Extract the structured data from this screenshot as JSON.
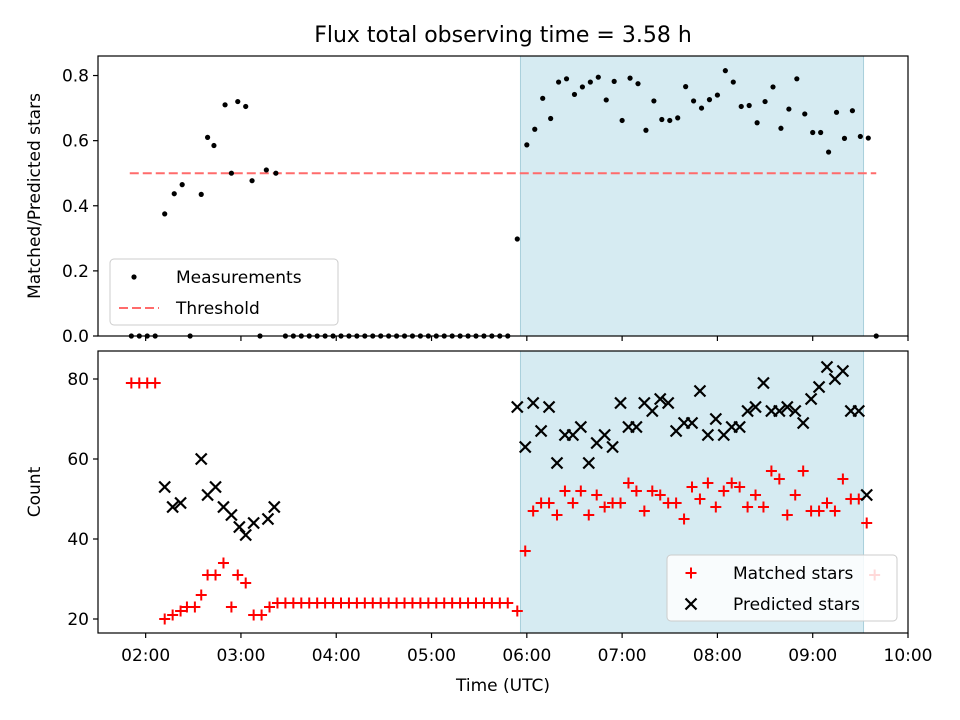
{
  "figure": {
    "title": "Flux total observing time = 3.58 h",
    "background": "#ffffff",
    "shade_color": "#add8e6"
  },
  "chart_data": [
    {
      "type": "scatter",
      "panel": "top",
      "title": "Flux total observing time = 3.58 h",
      "xlabel": "",
      "ylabel": "Matched/Predicted stars",
      "xlim": [
        "01:30",
        "10:00"
      ],
      "ylim": [
        0,
        0.86
      ],
      "yticks": [
        0.0,
        0.2,
        0.4,
        0.6,
        0.8
      ],
      "ytick_labels": [
        "0.0",
        "0.2",
        "0.4",
        "0.6",
        "0.8"
      ],
      "grid": false,
      "legend_position": "lower-left",
      "shaded_region": [
        "05:56",
        "09:32"
      ],
      "threshold": {
        "name": "Threshold",
        "value": 0.5,
        "xrange": [
          "01:50",
          "09:40"
        ],
        "color": "#ff6b6b",
        "style": "dashed"
      },
      "series": [
        {
          "name": "Measurements",
          "color": "#000000",
          "marker": "dot",
          "points": [
            [
              "01:51",
              0.0
            ],
            [
              "01:56",
              0.0
            ],
            [
              "02:01",
              0.0
            ],
            [
              "02:06",
              0.0
            ],
            [
              "02:12",
              0.375
            ],
            [
              "02:18",
              0.437
            ],
            [
              "02:23",
              0.465
            ],
            [
              "02:28",
              0.0
            ],
            [
              "02:35",
              0.435
            ],
            [
              "02:39",
              0.61
            ],
            [
              "02:43",
              0.585
            ],
            [
              "02:50",
              0.71
            ],
            [
              "02:54",
              0.5
            ],
            [
              "02:58",
              0.72
            ],
            [
              "03:03",
              0.705
            ],
            [
              "03:07",
              0.477
            ],
            [
              "03:12",
              0.0
            ],
            [
              "03:16",
              0.51
            ],
            [
              "03:22",
              0.5
            ],
            [
              "03:28",
              0.0
            ],
            [
              "03:33",
              0.0
            ],
            [
              "03:38",
              0.0
            ],
            [
              "03:43",
              0.0
            ],
            [
              "03:48",
              0.0
            ],
            [
              "03:53",
              0.0
            ],
            [
              "03:58",
              0.0
            ],
            [
              "04:03",
              0.0
            ],
            [
              "04:08",
              0.0
            ],
            [
              "04:13",
              0.0
            ],
            [
              "04:18",
              0.0
            ],
            [
              "04:23",
              0.0
            ],
            [
              "04:28",
              0.0
            ],
            [
              "04:33",
              0.0
            ],
            [
              "04:38",
              0.0
            ],
            [
              "04:43",
              0.0
            ],
            [
              "04:48",
              0.0
            ],
            [
              "04:53",
              0.0
            ],
            [
              "04:58",
              0.0
            ],
            [
              "05:03",
              0.0
            ],
            [
              "05:08",
              0.0
            ],
            [
              "05:13",
              0.0
            ],
            [
              "05:18",
              0.0
            ],
            [
              "05:23",
              0.0
            ],
            [
              "05:28",
              0.0
            ],
            [
              "05:33",
              0.0
            ],
            [
              "05:38",
              0.0
            ],
            [
              "05:43",
              0.0
            ],
            [
              "05:48",
              0.0
            ],
            [
              "05:54",
              0.298
            ],
            [
              "06:00",
              0.587
            ],
            [
              "06:05",
              0.635
            ],
            [
              "06:10",
              0.73
            ],
            [
              "06:15",
              0.668
            ],
            [
              "06:20",
              0.78
            ],
            [
              "06:25",
              0.79
            ],
            [
              "06:30",
              0.742
            ],
            [
              "06:35",
              0.765
            ],
            [
              "06:40",
              0.78
            ],
            [
              "06:45",
              0.795
            ],
            [
              "06:50",
              0.725
            ],
            [
              "06:55",
              0.782
            ],
            [
              "07:00",
              0.662
            ],
            [
              "07:05",
              0.792
            ],
            [
              "07:10",
              0.775
            ],
            [
              "07:15",
              0.632
            ],
            [
              "07:20",
              0.722
            ],
            [
              "07:25",
              0.665
            ],
            [
              "07:30",
              0.662
            ],
            [
              "07:35",
              0.67
            ],
            [
              "07:40",
              0.766
            ],
            [
              "07:45",
              0.722
            ],
            [
              "07:50",
              0.7
            ],
            [
              "07:55",
              0.726
            ],
            [
              "08:00",
              0.74
            ],
            [
              "08:05",
              0.815
            ],
            [
              "08:10",
              0.78
            ],
            [
              "08:15",
              0.705
            ],
            [
              "08:20",
              0.708
            ],
            [
              "08:25",
              0.655
            ],
            [
              "08:30",
              0.72
            ],
            [
              "08:35",
              0.765
            ],
            [
              "08:40",
              0.638
            ],
            [
              "08:45",
              0.697
            ],
            [
              "08:50",
              0.79
            ],
            [
              "08:55",
              0.682
            ],
            [
              "09:00",
              0.625
            ],
            [
              "09:05",
              0.625
            ],
            [
              "09:10",
              0.565
            ],
            [
              "09:15",
              0.687
            ],
            [
              "09:20",
              0.607
            ],
            [
              "09:25",
              0.692
            ],
            [
              "09:30",
              0.613
            ],
            [
              "09:35",
              0.608
            ],
            [
              "09:40",
              0.0
            ]
          ]
        }
      ]
    },
    {
      "type": "scatter",
      "panel": "bottom",
      "xlabel": "Time (UTC)",
      "ylabel": "Count",
      "xlim": [
        "01:30",
        "10:00"
      ],
      "xticks": [
        "02:00",
        "03:00",
        "04:00",
        "05:00",
        "06:00",
        "07:00",
        "08:00",
        "09:00",
        "10:00"
      ],
      "ylim": [
        16.5,
        87
      ],
      "yticks": [
        20,
        40,
        60,
        80
      ],
      "ytick_labels": [
        "20",
        "40",
        "60",
        "80"
      ],
      "grid": false,
      "legend_position": "lower-right",
      "shaded_region": [
        "05:56",
        "09:32"
      ],
      "series": [
        {
          "name": "Matched stars",
          "color": "#ff0000",
          "marker": "plus",
          "points": [
            [
              "01:51",
              79
            ],
            [
              "01:56",
              79
            ],
            [
              "02:01",
              79
            ],
            [
              "02:06",
              79
            ],
            [
              "02:12",
              20
            ],
            [
              "02:17",
              21
            ],
            [
              "02:22",
              22
            ],
            [
              "02:26",
              23
            ],
            [
              "02:31",
              23
            ],
            [
              "02:35",
              26
            ],
            [
              "02:39",
              31
            ],
            [
              "02:44",
              31
            ],
            [
              "02:49",
              34
            ],
            [
              "02:54",
              23
            ],
            [
              "02:58",
              31
            ],
            [
              "03:03",
              29
            ],
            [
              "03:08",
              21
            ],
            [
              "03:13",
              21
            ],
            [
              "03:18",
              23
            ],
            [
              "03:23",
              24
            ],
            [
              "03:28",
              24
            ],
            [
              "03:33",
              24
            ],
            [
              "03:38",
              24
            ],
            [
              "03:43",
              24
            ],
            [
              "03:48",
              24
            ],
            [
              "03:53",
              24
            ],
            [
              "03:58",
              24
            ],
            [
              "04:03",
              24
            ],
            [
              "04:08",
              24
            ],
            [
              "04:13",
              24
            ],
            [
              "04:18",
              24
            ],
            [
              "04:23",
              24
            ],
            [
              "04:28",
              24
            ],
            [
              "04:33",
              24
            ],
            [
              "04:38",
              24
            ],
            [
              "04:43",
              24
            ],
            [
              "04:48",
              24
            ],
            [
              "04:53",
              24
            ],
            [
              "04:58",
              24
            ],
            [
              "05:03",
              24
            ],
            [
              "05:08",
              24
            ],
            [
              "05:13",
              24
            ],
            [
              "05:18",
              24
            ],
            [
              "05:23",
              24
            ],
            [
              "05:28",
              24
            ],
            [
              "05:33",
              24
            ],
            [
              "05:38",
              24
            ],
            [
              "05:43",
              24
            ],
            [
              "05:48",
              24
            ],
            [
              "05:54",
              22
            ],
            [
              "05:59",
              37
            ],
            [
              "06:04",
              47
            ],
            [
              "06:09",
              49
            ],
            [
              "06:14",
              49
            ],
            [
              "06:19",
              46
            ],
            [
              "06:24",
              52
            ],
            [
              "06:29",
              49
            ],
            [
              "06:34",
              52
            ],
            [
              "06:39",
              46
            ],
            [
              "06:44",
              51
            ],
            [
              "06:49",
              48
            ],
            [
              "06:54",
              49
            ],
            [
              "06:59",
              49
            ],
            [
              "07:04",
              54
            ],
            [
              "07:09",
              52
            ],
            [
              "07:14",
              47
            ],
            [
              "07:19",
              52
            ],
            [
              "07:24",
              51
            ],
            [
              "07:29",
              49
            ],
            [
              "07:34",
              49
            ],
            [
              "07:39",
              45
            ],
            [
              "07:44",
              53
            ],
            [
              "07:49",
              50
            ],
            [
              "07:54",
              54
            ],
            [
              "07:59",
              48
            ],
            [
              "08:04",
              52
            ],
            [
              "08:09",
              54
            ],
            [
              "08:14",
              53
            ],
            [
              "08:19",
              48
            ],
            [
              "08:24",
              51
            ],
            [
              "08:29",
              48
            ],
            [
              "08:34",
              57
            ],
            [
              "08:39",
              55
            ],
            [
              "08:44",
              46
            ],
            [
              "08:49",
              51
            ],
            [
              "08:54",
              57
            ],
            [
              "08:59",
              47
            ],
            [
              "09:04",
              47
            ],
            [
              "09:09",
              49
            ],
            [
              "09:14",
              47
            ],
            [
              "09:19",
              55
            ],
            [
              "09:24",
              50
            ],
            [
              "09:29",
              50
            ],
            [
              "09:34",
              44
            ],
            [
              "09:39",
              31
            ]
          ]
        },
        {
          "name": "Predicted stars",
          "color": "#000000",
          "marker": "x",
          "points": [
            [
              "02:12",
              53
            ],
            [
              "02:17",
              48
            ],
            [
              "02:22",
              49
            ],
            [
              "02:35",
              60
            ],
            [
              "02:39",
              51
            ],
            [
              "02:44",
              53
            ],
            [
              "02:49",
              48
            ],
            [
              "02:54",
              46
            ],
            [
              "02:59",
              43
            ],
            [
              "03:03",
              41
            ],
            [
              "03:08",
              44
            ],
            [
              "03:17",
              45
            ],
            [
              "03:21",
              48
            ],
            [
              "05:54",
              73
            ],
            [
              "05:59",
              63
            ],
            [
              "06:04",
              74
            ],
            [
              "06:09",
              67
            ],
            [
              "06:14",
              73
            ],
            [
              "06:19",
              59
            ],
            [
              "06:24",
              66
            ],
            [
              "06:29",
              66
            ],
            [
              "06:34",
              68
            ],
            [
              "06:39",
              59
            ],
            [
              "06:44",
              64
            ],
            [
              "06:49",
              66
            ],
            [
              "06:54",
              63
            ],
            [
              "06:59",
              74
            ],
            [
              "07:04",
              68
            ],
            [
              "07:09",
              68
            ],
            [
              "07:14",
              74
            ],
            [
              "07:19",
              72
            ],
            [
              "07:24",
              75
            ],
            [
              "07:29",
              74
            ],
            [
              "07:34",
              67
            ],
            [
              "07:39",
              69
            ],
            [
              "07:44",
              69
            ],
            [
              "07:49",
              77
            ],
            [
              "07:54",
              66
            ],
            [
              "07:59",
              70
            ],
            [
              "08:04",
              66
            ],
            [
              "08:09",
              68
            ],
            [
              "08:14",
              68
            ],
            [
              "08:19",
              72
            ],
            [
              "08:24",
              73
            ],
            [
              "08:29",
              79
            ],
            [
              "08:34",
              72
            ],
            [
              "08:39",
              72
            ],
            [
              "08:44",
              73
            ],
            [
              "08:49",
              72
            ],
            [
              "08:54",
              69
            ],
            [
              "08:59",
              75
            ],
            [
              "09:04",
              78
            ],
            [
              "09:09",
              83
            ],
            [
              "09:14",
              80
            ],
            [
              "09:19",
              82
            ],
            [
              "09:24",
              72
            ],
            [
              "09:29",
              72
            ],
            [
              "09:34",
              51
            ]
          ]
        }
      ]
    }
  ]
}
